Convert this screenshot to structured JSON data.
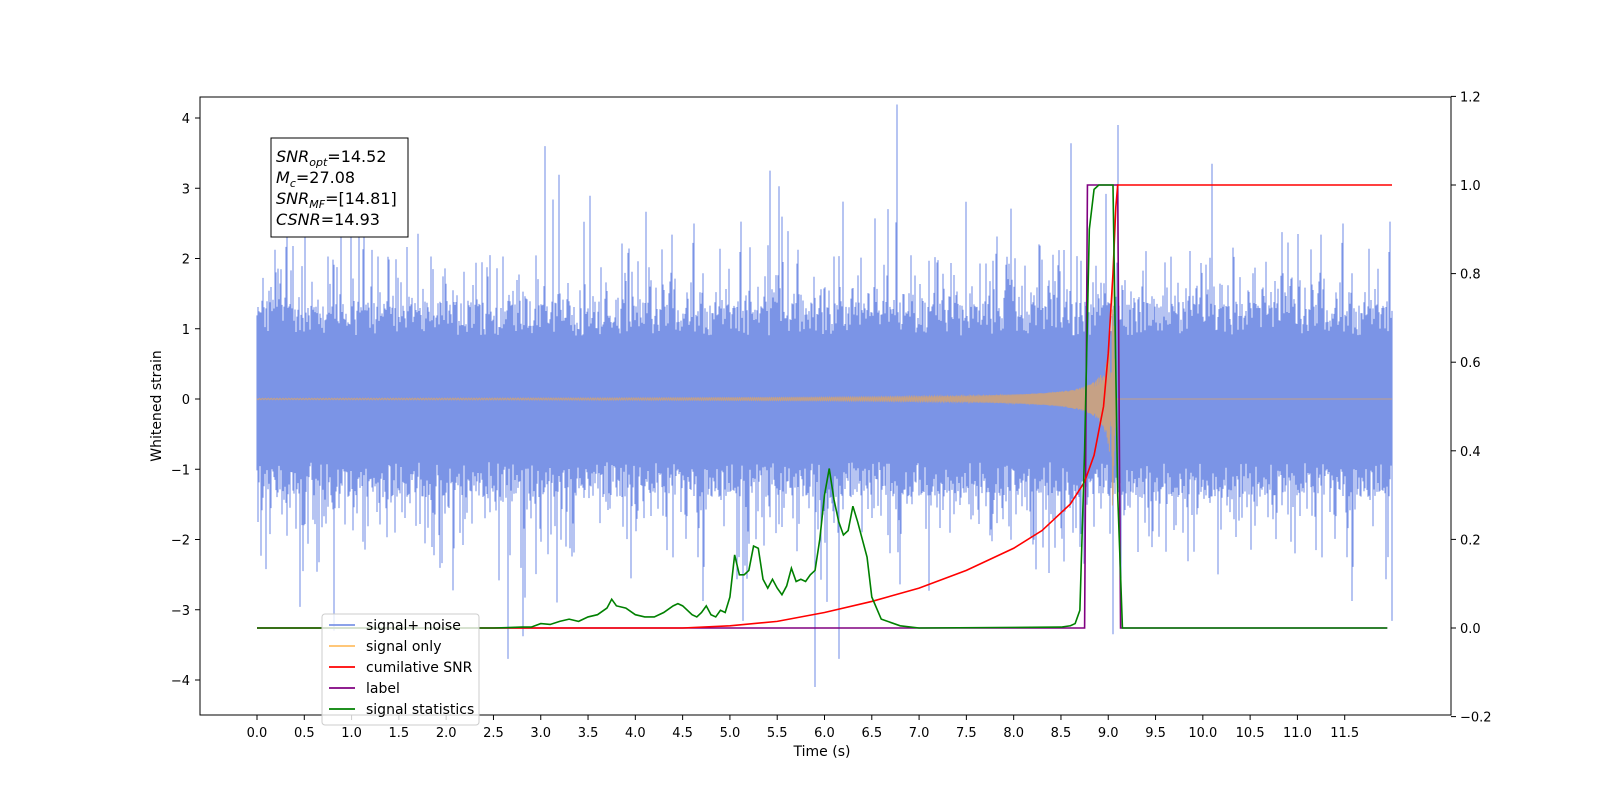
{
  "chart_data": {
    "type": "line",
    "xlabel": "Time (s)",
    "ylabel": "Whitened strain",
    "xlim": [
      -0.6,
      12.6
    ],
    "ylim": [
      -4.5,
      4.3
    ],
    "ylim_right": [
      -0.2,
      1.2
    ],
    "x_ticks": [
      "0.0",
      "0.5",
      "1.0",
      "1.5",
      "2.0",
      "2.5",
      "3.0",
      "3.5",
      "4.0",
      "4.5",
      "5.0",
      "5.5",
      "6.0",
      "6.5",
      "7.0",
      "7.5",
      "8.0",
      "8.5",
      "9.0",
      "9.5",
      "10.0",
      "10.5",
      "11.0",
      "11.5"
    ],
    "y_ticks_left": [
      "4",
      "3",
      "2",
      "1",
      "0",
      "−1",
      "−2",
      "−3",
      "−4"
    ],
    "y_ticks_right": [
      "1.2",
      "1.0",
      "0.8",
      "0.6",
      "0.4",
      "0.2",
      "0.0",
      "−0.2"
    ],
    "annotation": {
      "lines": [
        {
          "sym": "SNR",
          "sub": "opt",
          "val": "=14.52"
        },
        {
          "sym": "M",
          "sub": "c",
          "val": "=27.08"
        },
        {
          "sym": "SNR",
          "sub": "MF",
          "val": "=[14.81]"
        },
        {
          "sym": "CSNR",
          "sub": "",
          "val": "=14.93"
        }
      ]
    },
    "legend": {
      "placement": "lower-left",
      "entries": [
        {
          "name": "signal+ noise",
          "color": "#7b94e6"
        },
        {
          "name": "signal only",
          "color": "#ffbf66"
        },
        {
          "name": "cumilative SNR",
          "color": "#ff0000"
        },
        {
          "name": "label",
          "color": "#800080"
        },
        {
          "name": "signal statistics",
          "color": "#008000"
        }
      ]
    },
    "series": [
      {
        "name": "signal+ noise",
        "axis": "left",
        "color": "#7b94e6",
        "description_values": "whitened noise, std ~1, t from 0.0 to 12.0",
        "x_range": [
          0.0,
          12.0
        ],
        "amplitude_std": 1.0,
        "extremes": [
          [
            3.05,
            3.6
          ],
          [
            9.1,
            3.9
          ],
          [
            5.9,
            -4.1
          ],
          [
            6.15,
            -3.7
          ],
          [
            2.65,
            -3.7
          ],
          [
            9.05,
            -3.35
          ],
          [
            10.1,
            3.35
          ]
        ]
      },
      {
        "name": "signal only",
        "axis": "left",
        "color": "#d4a373",
        "description_values": "chirp amplitude rises until merger near 9.05 s",
        "x_range": [
          0.0,
          12.0
        ],
        "merger_time": 9.05,
        "peak_amplitude": 1.9
      },
      {
        "name": "cumilative SNR",
        "axis": "right",
        "x": [
          0,
          4.5,
          5.0,
          5.5,
          6.0,
          6.5,
          7.0,
          7.5,
          8.0,
          8.3,
          8.6,
          8.75,
          8.85,
          8.95,
          9.0,
          9.05,
          9.08,
          9.1,
          12.0
        ],
        "y": [
          0,
          0,
          0.005,
          0.015,
          0.035,
          0.06,
          0.09,
          0.13,
          0.18,
          0.22,
          0.28,
          0.33,
          0.39,
          0.5,
          0.62,
          0.8,
          0.95,
          1.0,
          1.0
        ]
      },
      {
        "name": "label",
        "axis": "right",
        "x": [
          0,
          8.75,
          8.78,
          9.1,
          9.13,
          11.95
        ],
        "y": [
          0,
          0,
          1.0,
          1.0,
          0,
          0
        ]
      },
      {
        "name": "signal statistics",
        "axis": "right",
        "x": [
          0.0,
          2.5,
          2.8,
          2.9,
          3.0,
          3.1,
          3.2,
          3.3,
          3.4,
          3.5,
          3.6,
          3.7,
          3.75,
          3.8,
          3.9,
          4.0,
          4.1,
          4.2,
          4.3,
          4.4,
          4.45,
          4.5,
          4.6,
          4.65,
          4.7,
          4.75,
          4.8,
          4.85,
          4.9,
          4.95,
          5.0,
          5.05,
          5.1,
          5.15,
          5.2,
          5.25,
          5.3,
          5.35,
          5.4,
          5.45,
          5.5,
          5.55,
          5.6,
          5.65,
          5.7,
          5.75,
          5.8,
          5.85,
          5.9,
          5.95,
          6.0,
          6.05,
          6.1,
          6.15,
          6.2,
          6.25,
          6.3,
          6.35,
          6.4,
          6.45,
          6.5,
          6.6,
          6.8,
          7.0,
          8.5,
          8.6,
          8.65,
          8.7,
          8.75,
          8.8,
          8.85,
          8.9,
          8.95,
          9.0,
          9.05,
          9.1,
          9.15,
          11.95
        ],
        "y": [
          0,
          0,
          0.002,
          0.002,
          0.01,
          0.008,
          0.015,
          0.02,
          0.015,
          0.025,
          0.03,
          0.045,
          0.065,
          0.05,
          0.045,
          0.03,
          0.025,
          0.025,
          0.035,
          0.05,
          0.055,
          0.05,
          0.03,
          0.025,
          0.035,
          0.05,
          0.03,
          0.025,
          0.04,
          0.035,
          0.07,
          0.165,
          0.12,
          0.12,
          0.13,
          0.185,
          0.18,
          0.11,
          0.09,
          0.11,
          0.09,
          0.075,
          0.095,
          0.135,
          0.105,
          0.11,
          0.105,
          0.12,
          0.13,
          0.2,
          0.3,
          0.36,
          0.29,
          0.24,
          0.21,
          0.22,
          0.275,
          0.24,
          0.2,
          0.16,
          0.07,
          0.02,
          0.005,
          0,
          0.002,
          0.005,
          0.01,
          0.04,
          0.4,
          0.9,
          0.99,
          1.0,
          1.0,
          1.0,
          1.0,
          0.3,
          0.0,
          0
        ]
      }
    ]
  }
}
